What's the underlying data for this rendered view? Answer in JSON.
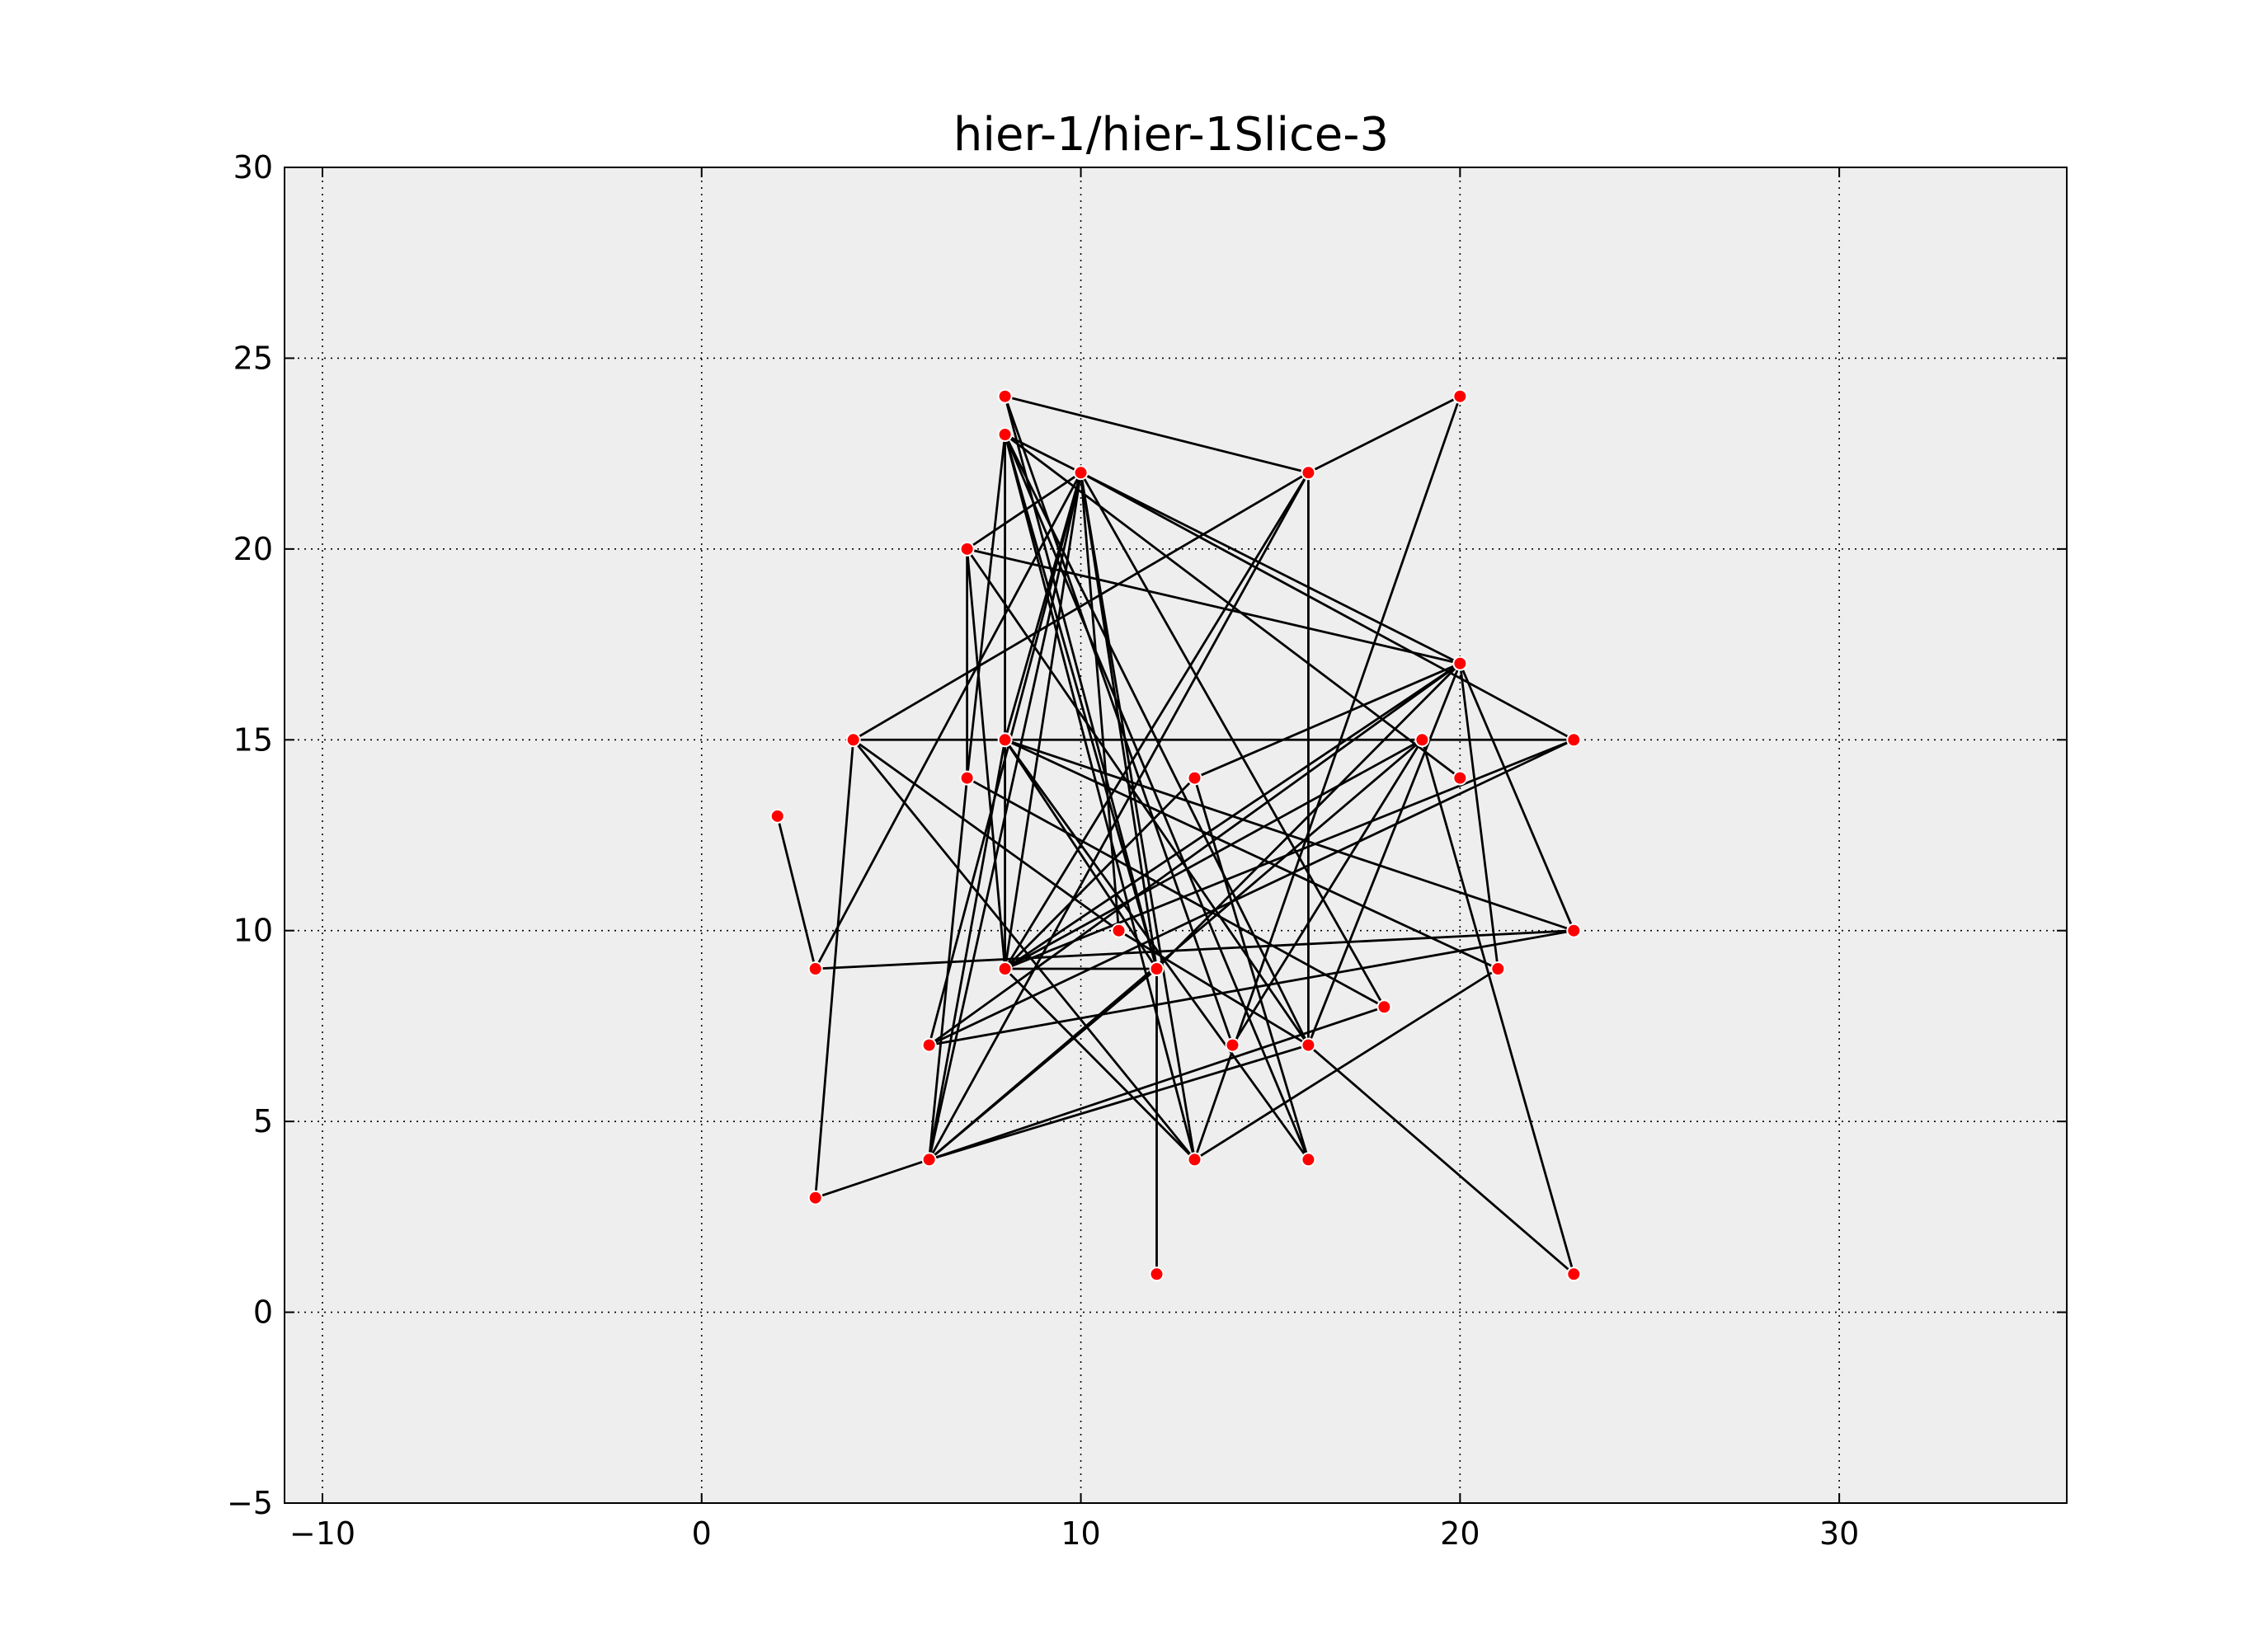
{
  "chart_data": {
    "type": "scatter",
    "title": "hier-1/hier-1Slice-3",
    "xlabel": "",
    "ylabel": "",
    "xlim": [
      -11,
      36
    ],
    "ylim": [
      -5,
      30
    ],
    "x_ticks": [
      -10,
      0,
      10,
      20,
      30
    ],
    "y_ticks": [
      -5,
      0,
      5,
      10,
      15,
      20,
      25,
      30
    ],
    "x_tick_labels": [
      "−10",
      "0",
      "10",
      "20",
      "30"
    ],
    "y_tick_labels": [
      "−5",
      "0",
      "5",
      "10",
      "15",
      "20",
      "25",
      "30"
    ],
    "grid": true,
    "colors": {
      "background": "#eeeeee",
      "node": "#ff0000",
      "edge": "#000000"
    },
    "nodes": [
      [
        8,
        24
      ],
      [
        20,
        24
      ],
      [
        8,
        23
      ],
      [
        10,
        22
      ],
      [
        16,
        22
      ],
      [
        7,
        20
      ],
      [
        20,
        17
      ],
      [
        4,
        15
      ],
      [
        8,
        15
      ],
      [
        19,
        15
      ],
      [
        23,
        15
      ],
      [
        7,
        14
      ],
      [
        13,
        14
      ],
      [
        20,
        14
      ],
      [
        2,
        13
      ],
      [
        11,
        10
      ],
      [
        23,
        10
      ],
      [
        3,
        9
      ],
      [
        8,
        9
      ],
      [
        12,
        9
      ],
      [
        21,
        9
      ],
      [
        18,
        8
      ],
      [
        6,
        7
      ],
      [
        14,
        7
      ],
      [
        16,
        7
      ],
      [
        6,
        4
      ],
      [
        13,
        4
      ],
      [
        16,
        4
      ],
      [
        3,
        3
      ],
      [
        12,
        1
      ],
      [
        23,
        1
      ]
    ],
    "edges": [
      [
        [
          8,
          24
        ],
        [
          16,
          22
        ]
      ],
      [
        [
          8,
          24
        ],
        [
          12,
          9
        ]
      ],
      [
        [
          8,
          24
        ],
        [
          14,
          7
        ]
      ],
      [
        [
          20,
          24
        ],
        [
          16,
          22
        ]
      ],
      [
        [
          20,
          24
        ],
        [
          13,
          4
        ]
      ],
      [
        [
          16,
          22
        ],
        [
          4,
          15
        ]
      ],
      [
        [
          16,
          22
        ],
        [
          16,
          7
        ]
      ],
      [
        [
          16,
          22
        ],
        [
          8,
          9
        ]
      ],
      [
        [
          16,
          22
        ],
        [
          6,
          4
        ]
      ],
      [
        [
          8,
          23
        ],
        [
          7,
          14
        ]
      ],
      [
        [
          8,
          23
        ],
        [
          8,
          9
        ]
      ],
      [
        [
          8,
          23
        ],
        [
          12,
          9
        ]
      ],
      [
        [
          8,
          23
        ],
        [
          16,
          7
        ]
      ],
      [
        [
          8,
          23
        ],
        [
          20,
          14
        ]
      ],
      [
        [
          8,
          23
        ],
        [
          13,
          4
        ]
      ],
      [
        [
          8,
          23
        ],
        [
          10,
          22
        ]
      ],
      [
        [
          8,
          23
        ],
        [
          16,
          4
        ]
      ],
      [
        [
          10,
          22
        ],
        [
          7,
          20
        ]
      ],
      [
        [
          10,
          22
        ],
        [
          3,
          9
        ]
      ],
      [
        [
          10,
          22
        ],
        [
          8,
          9
        ]
      ],
      [
        [
          10,
          22
        ],
        [
          6,
          4
        ]
      ],
      [
        [
          10,
          22
        ],
        [
          20,
          17
        ]
      ],
      [
        [
          10,
          22
        ],
        [
          23,
          15
        ]
      ],
      [
        [
          10,
          22
        ],
        [
          11,
          10
        ]
      ],
      [
        [
          10,
          22
        ],
        [
          12,
          9
        ]
      ],
      [
        [
          10,
          22
        ],
        [
          18,
          8
        ]
      ],
      [
        [
          10,
          22
        ],
        [
          6,
          7
        ]
      ],
      [
        [
          10,
          22
        ],
        [
          13,
          4
        ]
      ],
      [
        [
          10,
          22
        ],
        [
          8,
          15
        ]
      ],
      [
        [
          7,
          20
        ],
        [
          8,
          9
        ]
      ],
      [
        [
          7,
          20
        ],
        [
          20,
          17
        ]
      ],
      [
        [
          7,
          20
        ],
        [
          16,
          7
        ]
      ],
      [
        [
          7,
          20
        ],
        [
          7,
          14
        ]
      ],
      [
        [
          20,
          17
        ],
        [
          8,
          9
        ]
      ],
      [
        [
          20,
          17
        ],
        [
          23,
          10
        ]
      ],
      [
        [
          20,
          17
        ],
        [
          13,
          14
        ]
      ],
      [
        [
          20,
          17
        ],
        [
          6,
          7
        ]
      ],
      [
        [
          20,
          17
        ],
        [
          21,
          9
        ]
      ],
      [
        [
          20,
          17
        ],
        [
          16,
          7
        ]
      ],
      [
        [
          20,
          17
        ],
        [
          12,
          9
        ]
      ],
      [
        [
          4,
          15
        ],
        [
          23,
          15
        ]
      ],
      [
        [
          4,
          15
        ],
        [
          11,
          10
        ]
      ],
      [
        [
          4,
          15
        ],
        [
          13,
          4
        ]
      ],
      [
        [
          4,
          15
        ],
        [
          3,
          3
        ]
      ],
      [
        [
          8,
          15
        ],
        [
          21,
          9
        ]
      ],
      [
        [
          8,
          15
        ],
        [
          23,
          10
        ]
      ],
      [
        [
          8,
          15
        ],
        [
          16,
          4
        ]
      ],
      [
        [
          8,
          15
        ],
        [
          6,
          4
        ]
      ],
      [
        [
          8,
          15
        ],
        [
          12,
          9
        ]
      ],
      [
        [
          23,
          15
        ],
        [
          6,
          7
        ]
      ],
      [
        [
          23,
          15
        ],
        [
          8,
          9
        ]
      ],
      [
        [
          19,
          15
        ],
        [
          6,
          4
        ]
      ],
      [
        [
          19,
          15
        ],
        [
          14,
          7
        ]
      ],
      [
        [
          19,
          15
        ],
        [
          8,
          9
        ]
      ],
      [
        [
          19,
          15
        ],
        [
          23,
          1
        ]
      ],
      [
        [
          7,
          14
        ],
        [
          18,
          8
        ]
      ],
      [
        [
          7,
          14
        ],
        [
          6,
          4
        ]
      ],
      [
        [
          13,
          14
        ],
        [
          16,
          4
        ]
      ],
      [
        [
          13,
          14
        ],
        [
          8,
          9
        ]
      ],
      [
        [
          2,
          13
        ],
        [
          3,
          9
        ]
      ],
      [
        [
          3,
          9
        ],
        [
          23,
          10
        ]
      ],
      [
        [
          11,
          10
        ],
        [
          16,
          7
        ]
      ],
      [
        [
          8,
          9
        ],
        [
          12,
          9
        ]
      ],
      [
        [
          8,
          9
        ],
        [
          13,
          4
        ]
      ],
      [
        [
          12,
          9
        ],
        [
          12,
          1
        ]
      ],
      [
        [
          12,
          9
        ],
        [
          6,
          4
        ]
      ],
      [
        [
          6,
          4
        ],
        [
          18,
          8
        ]
      ],
      [
        [
          6,
          4
        ],
        [
          16,
          7
        ]
      ],
      [
        [
          3,
          3
        ],
        [
          6,
          4
        ]
      ],
      [
        [
          21,
          9
        ],
        [
          13,
          4
        ]
      ],
      [
        [
          6,
          7
        ],
        [
          23,
          10
        ]
      ],
      [
        [
          16,
          7
        ],
        [
          23,
          1
        ]
      ]
    ]
  }
}
